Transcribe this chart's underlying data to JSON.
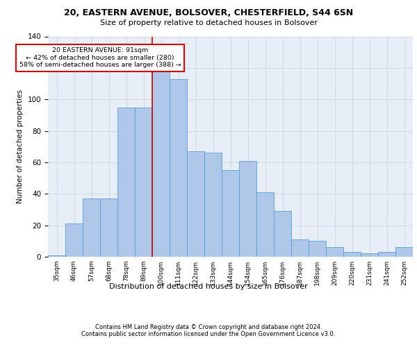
{
  "title1": "20, EASTERN AVENUE, BOLSOVER, CHESTERFIELD, S44 6SN",
  "title2": "Size of property relative to detached houses in Bolsover",
  "xlabel": "Distribution of detached houses by size in Bolsover",
  "ylabel": "Number of detached properties",
  "bin_labels": [
    "35sqm",
    "46sqm",
    "57sqm",
    "68sqm",
    "78sqm",
    "89sqm",
    "100sqm",
    "111sqm",
    "122sqm",
    "133sqm",
    "144sqm",
    "154sqm",
    "165sqm",
    "176sqm",
    "187sqm",
    "198sqm",
    "209sqm",
    "220sqm",
    "231sqm",
    "241sqm",
    "252sqm"
  ],
  "bar_values": [
    1,
    21,
    37,
    37,
    95,
    95,
    119,
    113,
    67,
    66,
    55,
    61,
    41,
    29,
    11,
    10,
    6,
    3,
    2,
    3,
    6
  ],
  "bar_color": "#aec6e8",
  "bar_edge_color": "#5a9fd4",
  "vline_x": 6.0,
  "vline_color": "#cc0000",
  "annotation_text": "20 EASTERN AVENUE: 91sqm\n← 42% of detached houses are smaller (280)\n58% of semi-detached houses are larger (388) →",
  "annotation_box_color": "#ffffff",
  "annotation_border_color": "#cc0000",
  "ylim": [
    0,
    140
  ],
  "yticks": [
    0,
    20,
    40,
    60,
    80,
    100,
    120,
    140
  ],
  "grid_color": "#d0d8e4",
  "bg_color": "#e8eef5",
  "footer1": "Contains HM Land Registry data © Crown copyright and database right 2024.",
  "footer2": "Contains public sector information licensed under the Open Government Licence v3.0."
}
